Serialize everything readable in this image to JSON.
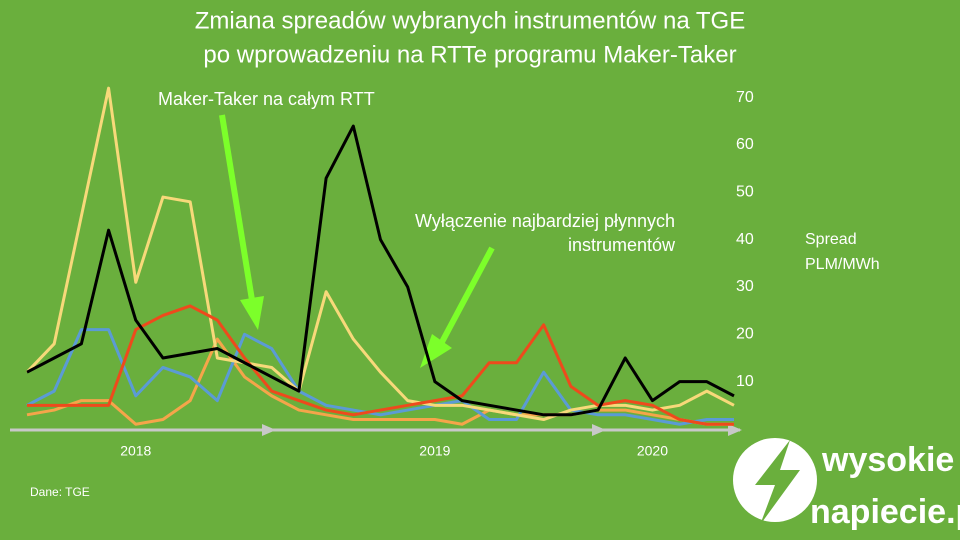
{
  "chart_data": {
    "type": "line",
    "title": [
      "Zmiana spreadów wybranych instrumentów na TGE",
      "po wprowadzeniu na RTTe programu Maker-Taker"
    ],
    "y_label": [
      "Spread",
      "PLM/MWh"
    ],
    "annotations": [
      [
        "Maker-Taker na całym RTT"
      ],
      [
        "Wyłączenie najbardziej płynnych",
        "instrumentów"
      ]
    ],
    "source": "Dane: TGE",
    "logo": [
      "wysokie",
      "napiecie.pl"
    ],
    "categories": [
      null,
      null,
      null,
      null,
      "2018",
      null,
      null,
      null,
      null,
      null,
      null,
      null,
      null,
      null,
      null,
      "2019",
      null,
      null,
      null,
      null,
      null,
      null,
      null,
      "2020",
      null,
      null,
      null
    ],
    "ylim": [
      0,
      75
    ],
    "yticks": [
      10,
      20,
      30,
      40,
      50,
      60,
      70
    ],
    "series": [
      {
        "color": "#f5a54a",
        "values": [
          3,
          4,
          6,
          6,
          1,
          2,
          6,
          19,
          11,
          7,
          4,
          3,
          2,
          2,
          2,
          2,
          1,
          4,
          3,
          3,
          3,
          4,
          4,
          3,
          2,
          1,
          1
        ]
      },
      {
        "color": "#5b9bd5",
        "values": [
          5,
          8,
          21,
          21,
          7,
          13,
          11,
          6,
          20,
          17,
          8,
          5,
          4,
          3,
          4,
          5,
          6,
          2,
          2,
          12,
          4,
          3,
          3,
          2,
          1,
          2,
          2
        ]
      },
      {
        "color": "#f7d97a",
        "values": [
          12,
          18,
          45,
          72,
          31,
          49,
          48,
          15,
          14,
          13,
          8,
          29,
          19,
          12,
          6,
          5,
          5,
          4,
          3,
          2,
          4,
          5,
          5,
          4,
          5,
          8,
          5
        ]
      },
      {
        "color": "#ee4a1c",
        "values": [
          5,
          5,
          5,
          5,
          21,
          24,
          26,
          23,
          15,
          8,
          6,
          4,
          3,
          4,
          5,
          6,
          7,
          14,
          14,
          22,
          9,
          5,
          6,
          5,
          2,
          1,
          1
        ]
      },
      {
        "color": "#000000",
        "values": [
          12,
          15,
          18,
          42,
          23,
          15,
          16,
          17,
          14,
          11,
          8,
          53,
          64,
          40,
          30,
          10,
          6,
          5,
          4,
          3,
          3,
          4,
          15,
          6,
          10,
          10,
          7
        ]
      }
    ]
  }
}
